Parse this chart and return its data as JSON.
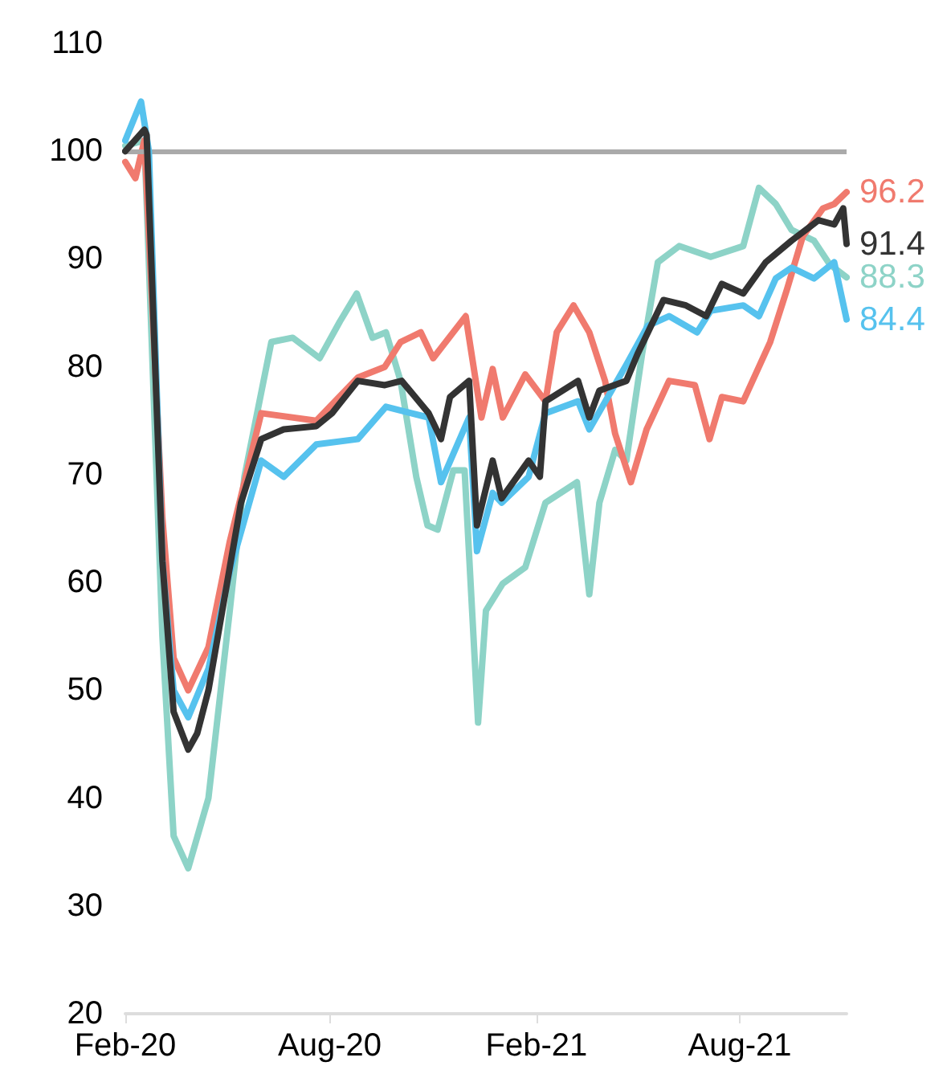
{
  "chart_data": {
    "type": "line",
    "xlim": [
      "2020-02-01",
      "2021-11-04"
    ],
    "ylim": [
      20,
      110
    ],
    "yticks": [
      20,
      30,
      40,
      50,
      60,
      70,
      80,
      90,
      100,
      110
    ],
    "xticks": [
      {
        "value": "2020-02-01",
        "label": "Feb-20"
      },
      {
        "value": "2020-08-01",
        "label": "Aug-20"
      },
      {
        "value": "2021-02-01",
        "label": "Feb-21"
      },
      {
        "value": "2021-08-01",
        "label": "Aug-21"
      }
    ],
    "grid": false,
    "marker": "none",
    "line_style": "solid",
    "ref_lines": [
      {
        "axis": "y",
        "value": 100,
        "label": null,
        "color": "#aaaaaa"
      }
    ],
    "series": [
      {
        "color": "#8dd3c7",
        "x": [
          "2020-02-01",
          "2020-02-18",
          "2020-03-05",
          "2020-03-15",
          "2020-03-28",
          "2020-04-15",
          "2020-05-04",
          "2020-05-17",
          "2020-06-10",
          "2020-06-29",
          "2020-07-23",
          "2020-08-10",
          "2020-08-25",
          "2020-09-08",
          "2020-09-20",
          "2020-10-03",
          "2020-10-17",
          "2020-10-27",
          "2020-11-05",
          "2020-11-19",
          "2020-11-29",
          "2020-12-11",
          "2020-12-18",
          "2021-01-02",
          "2021-01-22",
          "2021-02-09",
          "2021-03-09",
          "2021-03-20",
          "2021-03-29",
          "2021-04-12",
          "2021-04-22",
          "2021-05-06",
          "2021-05-20",
          "2021-06-08",
          "2021-07-06",
          "2021-08-04",
          "2021-08-18",
          "2021-09-02",
          "2021-09-16",
          "2021-10-06",
          "2021-10-20",
          "2021-11-04"
        ],
        "values": [
          100.5,
          101,
          55,
          36.5,
          33.5,
          40,
          57.4,
          69.8,
          82.3,
          82.7,
          80.8,
          84.2,
          86.8,
          82.7,
          83.2,
          78.7,
          69.8,
          65.3,
          64.9,
          70.4,
          70.4,
          47,
          57.4,
          59.9,
          61.4,
          67.4,
          69.3,
          58.9,
          67.4,
          72.3,
          71.3,
          81.2,
          89.7,
          91.2,
          90.2,
          91.2,
          96.6,
          95.1,
          92.7,
          91.7,
          89.5,
          88.3
        ],
        "value_labels": [
          null,
          null,
          null,
          null,
          null,
          null,
          null,
          null,
          null,
          null,
          null,
          null,
          null,
          null,
          null,
          null,
          null,
          null,
          null,
          null,
          null,
          null,
          null,
          null,
          null,
          null,
          null,
          null,
          null,
          null,
          null,
          null,
          null,
          null,
          null,
          null,
          null,
          null,
          null,
          null,
          null,
          "88.3"
        ]
      },
      {
        "color": "#f07a6e",
        "x": [
          "2020-02-01",
          "2020-02-10",
          "2020-02-18",
          "2020-03-05",
          "2020-03-15",
          "2020-03-28",
          "2020-04-15",
          "2020-05-04",
          "2020-05-14",
          "2020-06-01",
          "2020-07-20",
          "2020-08-26",
          "2020-09-19",
          "2020-10-03",
          "2020-10-21",
          "2020-11-01",
          "2020-11-30",
          "2020-12-14",
          "2020-12-24",
          "2021-01-02",
          "2021-01-22",
          "2021-02-09",
          "2021-02-19",
          "2021-03-06",
          "2021-03-20",
          "2021-04-03",
          "2021-04-12",
          "2021-04-26",
          "2021-05-10",
          "2021-05-30",
          "2021-06-22",
          "2021-07-05",
          "2021-07-16",
          "2021-08-04",
          "2021-08-28",
          "2021-09-12",
          "2021-09-26",
          "2021-10-14",
          "2021-10-24",
          "2021-11-04"
        ],
        "values": [
          99,
          97.5,
          101,
          66,
          53,
          50,
          54,
          63.8,
          68,
          75.7,
          75,
          79,
          80,
          82.3,
          83.2,
          80.8,
          84.7,
          75.3,
          79.8,
          75.3,
          79.3,
          76.8,
          83.2,
          85.7,
          83.2,
          78.7,
          73.8,
          69.3,
          74.2,
          78.7,
          78.3,
          73.3,
          77.2,
          76.8,
          82.3,
          87.2,
          92.1,
          94.7,
          95.1,
          96.2
        ],
        "value_labels": [
          null,
          null,
          null,
          null,
          null,
          null,
          null,
          null,
          null,
          null,
          null,
          null,
          null,
          null,
          null,
          null,
          null,
          null,
          null,
          null,
          null,
          null,
          null,
          null,
          null,
          null,
          null,
          null,
          null,
          null,
          null,
          null,
          null,
          null,
          null,
          null,
          null,
          null,
          null,
          "96.2"
        ]
      },
      {
        "color": "#56c2ee",
        "x": [
          "2020-02-01",
          "2020-02-15",
          "2020-02-22",
          "2020-03-05",
          "2020-03-15",
          "2020-03-28",
          "2020-04-15",
          "2020-05-04",
          "2020-06-01",
          "2020-06-21",
          "2020-07-20",
          "2020-08-26",
          "2020-09-20",
          "2020-10-28",
          "2020-11-08",
          "2020-12-03",
          "2020-12-10",
          "2020-12-24",
          "2021-01-01",
          "2021-01-25",
          "2021-02-09",
          "2021-03-10",
          "2021-03-20",
          "2021-04-22",
          "2021-05-11",
          "2021-05-30",
          "2021-06-24",
          "2021-07-06",
          "2021-08-04",
          "2021-08-18",
          "2021-09-02",
          "2021-09-16",
          "2021-10-06",
          "2021-10-24",
          "2021-11-04"
        ],
        "values": [
          101,
          104.6,
          100,
          62,
          50,
          47.5,
          52,
          61,
          71.3,
          69.8,
          72.8,
          73.3,
          76.3,
          75.3,
          69.3,
          75.3,
          62.9,
          68.3,
          67.4,
          69.8,
          75.7,
          76.8,
          74.2,
          80.2,
          83.8,
          84.7,
          83.2,
          85.2,
          85.7,
          84.7,
          88.2,
          89.2,
          88.2,
          89.7,
          84.4
        ],
        "value_labels": [
          null,
          null,
          null,
          null,
          null,
          null,
          null,
          null,
          null,
          null,
          null,
          null,
          null,
          null,
          null,
          null,
          null,
          null,
          null,
          null,
          null,
          null,
          null,
          null,
          null,
          null,
          null,
          null,
          null,
          null,
          null,
          null,
          null,
          null,
          "84.4"
        ]
      },
      {
        "color": "#333333",
        "x": [
          "2020-02-01",
          "2020-02-18",
          "2020-02-20",
          "2020-03-05",
          "2020-03-15",
          "2020-03-28",
          "2020-04-05",
          "2020-04-15",
          "2020-05-04",
          "2020-05-14",
          "2020-06-01",
          "2020-06-21",
          "2020-07-20",
          "2020-08-03",
          "2020-08-26",
          "2020-09-19",
          "2020-10-04",
          "2020-10-28",
          "2020-11-08",
          "2020-11-16",
          "2020-12-03",
          "2020-12-10",
          "2020-12-24",
          "2021-01-01",
          "2021-01-25",
          "2021-02-04",
          "2021-02-09",
          "2021-03-10",
          "2021-03-20",
          "2021-03-29",
          "2021-04-22",
          "2021-05-02",
          "2021-05-25",
          "2021-06-14",
          "2021-07-02",
          "2021-07-16",
          "2021-08-04",
          "2021-08-24",
          "2021-09-16",
          "2021-10-10",
          "2021-10-24",
          "2021-11-01",
          "2021-11-04"
        ],
        "values": [
          100,
          102,
          101.5,
          62,
          48,
          44.5,
          46,
          50,
          61.4,
          67.4,
          73.3,
          74.2,
          74.5,
          75.7,
          78.7,
          78.3,
          78.7,
          75.7,
          73.3,
          77.2,
          78.7,
          65.3,
          71.3,
          67.8,
          71.3,
          69.8,
          76.8,
          78.7,
          75.3,
          77.8,
          78.7,
          81.2,
          86.2,
          85.7,
          84.7,
          87.7,
          86.8,
          89.7,
          91.7,
          93.6,
          93.2,
          94.7,
          91.4
        ],
        "value_labels": [
          null,
          null,
          null,
          null,
          null,
          null,
          null,
          null,
          null,
          null,
          null,
          null,
          null,
          null,
          null,
          null,
          null,
          null,
          null,
          null,
          null,
          null,
          null,
          null,
          null,
          null,
          null,
          null,
          null,
          null,
          null,
          null,
          null,
          null,
          null,
          null,
          null,
          null,
          null,
          null,
          null,
          null,
          "91.4"
        ]
      }
    ]
  }
}
